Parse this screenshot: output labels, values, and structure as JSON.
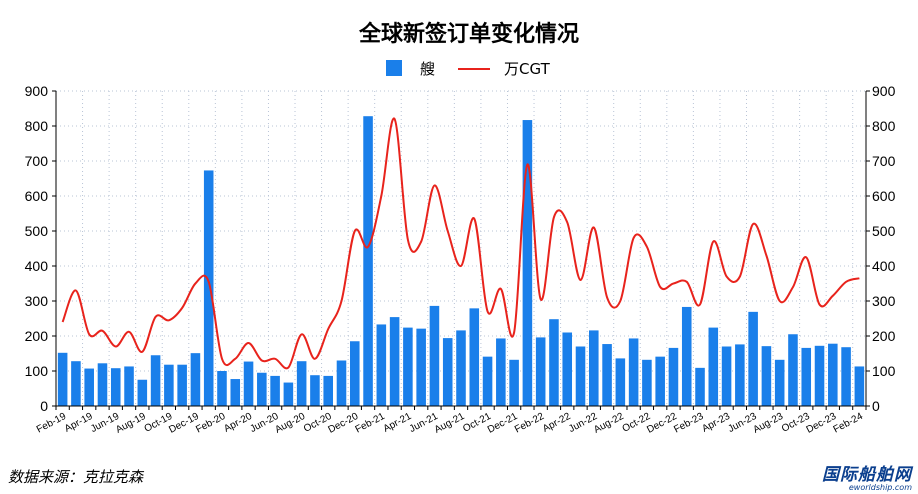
{
  "source_note": "数据来源：克拉克森",
  "watermark": {
    "main": "国际船舶网",
    "sub": "eworldship.com",
    "color": "#0b3f8e"
  },
  "colors": {
    "bars": "#1a7fea",
    "line": "#e8231c"
  },
  "chart_data": {
    "type": "bar+line",
    "title": "全球新签订单变化情况",
    "legend": {
      "placement": "top-center",
      "entries": [
        "艘",
        "万CGT"
      ]
    },
    "grid": true,
    "ylim": [
      0,
      900
    ],
    "y_ticks": [
      0,
      100,
      200,
      300,
      400,
      500,
      600,
      700,
      800,
      900
    ],
    "y2lim": [
      0,
      900
    ],
    "y2_ticks": [
      0,
      100,
      200,
      300,
      400,
      500,
      600,
      700,
      800,
      900
    ],
    "categories": [
      "Feb-19",
      "Mar-19",
      "Apr-19",
      "May-19",
      "Jun-19",
      "Jul-19",
      "Aug-19",
      "Sep-19",
      "Oct-19",
      "Nov-19",
      "Dec-19",
      "Jan-20",
      "Feb-20",
      "Mar-20",
      "Apr-20",
      "May-20",
      "Jun-20",
      "Jul-20",
      "Aug-20",
      "Sep-20",
      "Oct-20",
      "Nov-20",
      "Dec-20",
      "Jan-21",
      "Feb-21",
      "Mar-21",
      "Apr-21",
      "May-21",
      "Jun-21",
      "Jul-21",
      "Aug-21",
      "Sep-21",
      "Oct-21",
      "Nov-21",
      "Dec-21",
      "Jan-22",
      "Feb-22",
      "Mar-22",
      "Apr-22",
      "May-22",
      "Jun-22",
      "Jul-22",
      "Aug-22",
      "Sep-22",
      "Oct-22",
      "Nov-22",
      "Dec-22",
      "Jan-23",
      "Feb-23",
      "Mar-23",
      "Apr-23",
      "May-23",
      "Jun-23",
      "Jul-23",
      "Aug-23",
      "Sep-23",
      "Oct-23",
      "Nov-23",
      "Dec-23",
      "Jan-24",
      "Feb-24"
    ],
    "x_tick_labels": [
      "Feb-19",
      "Apr-19",
      "Jun-19",
      "Aug-19",
      "Oct-19",
      "Dec-19",
      "Feb-20",
      "Apr-20",
      "Jun-20",
      "Aug-20",
      "Oct-20",
      "Dec-20",
      "Feb-21",
      "Apr-21",
      "Jun-21",
      "Aug-21",
      "Oct-21",
      "Dec-21",
      "Feb-22",
      "Apr-22",
      "Jun-22",
      "Aug-22",
      "Oct-22",
      "Dec-22",
      "Feb-23",
      "Apr-23",
      "Jun-23",
      "Aug-23",
      "Oct-23",
      "Dec-23",
      "Feb-24"
    ],
    "series": [
      {
        "name": "艘",
        "type": "bar",
        "axis": "left",
        "values": [
          152,
          128,
          107,
          122,
          108,
          113,
          75,
          145,
          118,
          118,
          151,
          673,
          100,
          77,
          127,
          95,
          86,
          67,
          128,
          88,
          86,
          130,
          185,
          828,
          233,
          254,
          224,
          221,
          286,
          194,
          216,
          279,
          141,
          193,
          132,
          817,
          196,
          248,
          210,
          170,
          216,
          177,
          136,
          193,
          132,
          141,
          166,
          283,
          109,
          224,
          170,
          176,
          269,
          171,
          132,
          205,
          166,
          172,
          178,
          168,
          113
        ]
      },
      {
        "name": "万CGT",
        "type": "line",
        "axis": "right",
        "values": [
          240,
          330,
          205,
          215,
          170,
          212,
          155,
          255,
          245,
          280,
          350,
          355,
          135,
          135,
          180,
          130,
          135,
          110,
          205,
          135,
          220,
          300,
          500,
          455,
          600,
          820,
          475,
          470,
          630,
          500,
          400,
          535,
          270,
          335,
          210,
          690,
          305,
          540,
          525,
          360,
          510,
          310,
          300,
          480,
          455,
          340,
          350,
          355,
          290,
          470,
          370,
          370,
          520,
          430,
          300,
          340,
          425,
          290,
          315,
          355,
          365
        ]
      }
    ]
  }
}
